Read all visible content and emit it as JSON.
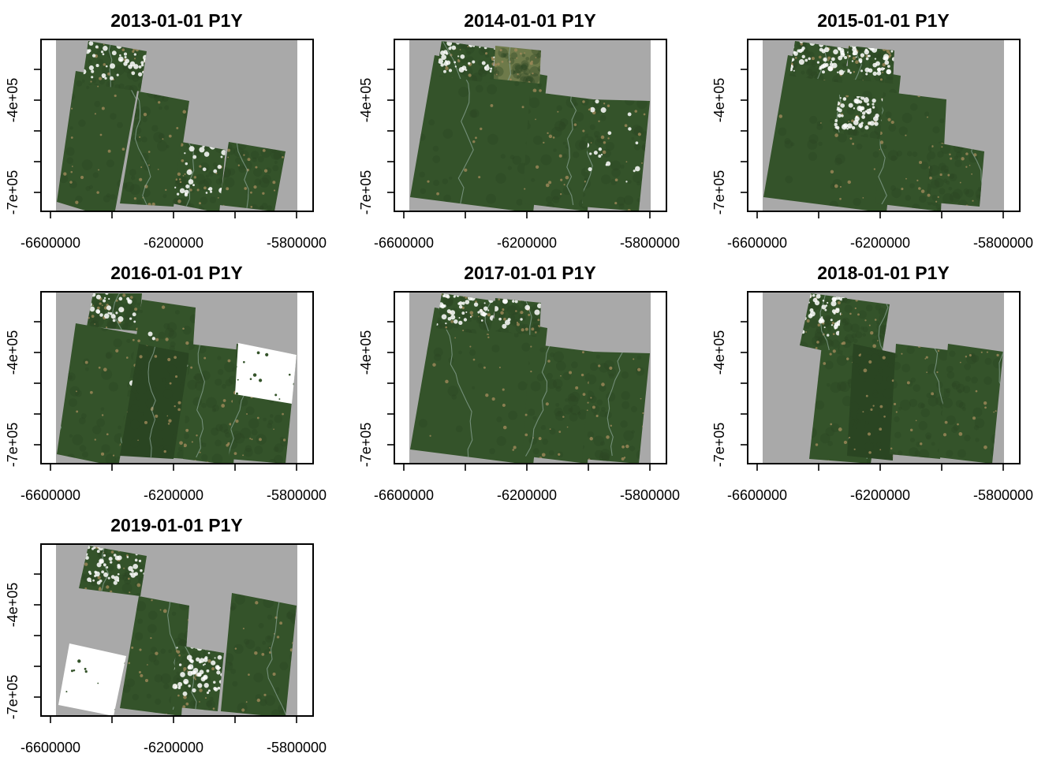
{
  "figure": {
    "layout": {
      "rows": 3,
      "cols": 3
    },
    "x_ticks": [
      "-6600000",
      "-6200000",
      "-5800000"
    ],
    "y_ticks": [
      "-4e+05",
      "-7e+05"
    ],
    "colors": {
      "no_data": "#a9a9a9",
      "forest": "#34532a",
      "forest_dark": "#2a4522",
      "cloud": "#ffffff",
      "clearing": "#a08a5a",
      "river": "#8fa89a",
      "frame": "#000000"
    },
    "panels": [
      {
        "title": "2013-01-01 P1Y"
      },
      {
        "title": "2014-01-01 P1Y"
      },
      {
        "title": "2015-01-01 P1Y"
      },
      {
        "title": "2016-01-01 P1Y"
      },
      {
        "title": "2017-01-01 P1Y"
      },
      {
        "title": "2018-01-01 P1Y"
      },
      {
        "title": "2019-01-01 P1Y"
      }
    ]
  }
}
